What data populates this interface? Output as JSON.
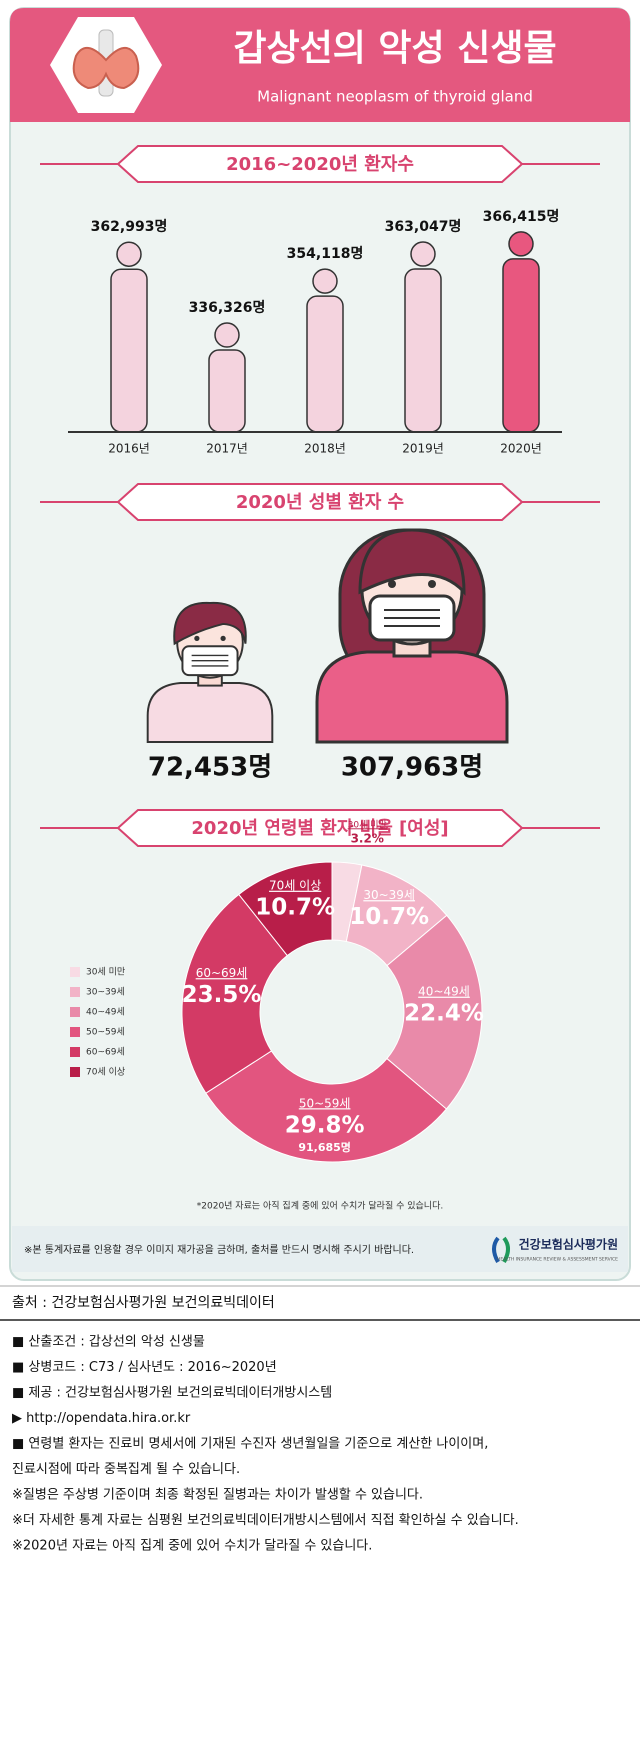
{
  "header": {
    "title": "갑상선의 악성 신생물",
    "subtitle": "Malignant neoplasm of thyroid gland"
  },
  "chart_data": [
    {
      "type": "bar",
      "title": "2016~2020년 환자수",
      "categories": [
        "2016년",
        "2017년",
        "2018년",
        "2019년",
        "2020년"
      ],
      "values": [
        362993,
        336326,
        354118,
        363047,
        366415
      ],
      "value_labels": [
        "362,993명",
        "336,326명",
        "354,118명",
        "363,047명",
        "366,415명"
      ],
      "colors": [
        "#f4d3de",
        "#f4d3de",
        "#f4d3de",
        "#f4d3de",
        "#e8577f"
      ],
      "ylim": [
        300000,
        370000
      ]
    },
    {
      "type": "pictogram",
      "title": "2020년 성별 환자 수",
      "categories": [
        null,
        null
      ],
      "values": [
        72453,
        307963
      ],
      "value_labels": [
        "72,453명",
        "307,963명"
      ],
      "colors": [
        "#f7dbe3",
        "#ea5f88"
      ]
    },
    {
      "type": "donut",
      "title": "2020년 연령별 환자 비율 [여성]",
      "categories": [
        "30세 미만",
        "30~39세",
        "40~49세",
        "50~59세",
        "60~69세",
        "70세 이상"
      ],
      "values": [
        3.2,
        10.7,
        22.4,
        29.8,
        23.5,
        10.7
      ],
      "value_labels": [
        "3.2%",
        "10.7%",
        "22.4%",
        "29.8%",
        "23.5%",
        "10.7%"
      ],
      "colors": [
        "#f8dbe4",
        "#f2b3c7",
        "#e98aa9",
        "#e2557f",
        "#d33a65",
        "#b81e49"
      ],
      "annotations": [
        {
          "index": 3,
          "text": "91,685명"
        }
      ],
      "legend": "left",
      "note": "*2020년 자료는 아직 집계 중에 있어 수치가 달라질 수 있습니다."
    }
  ],
  "banner": {
    "text": "※본 통계자료를 인용할 경우 이미지 재가공을 금하며, 출처를 반드시 명시해 주시기 바랍니다.",
    "logo": "건강보험심사평가원",
    "logo_sub": "HEALTH INSURANCE REVIEW & ASSESSMENT SERVICE"
  },
  "source": "출처 : 건강보험심사평가원 보건의료빅데이터",
  "items": [
    "■ 산출조건 : 갑상선의 악성 신생물",
    "■ 상병코드 : C73 / 심사년도 : 2016~2020년",
    "■ 제공 : 건강보험심사평가원 보건의료빅데이터개방시스템",
    "▶ http://opendata.hira.or.kr",
    "■ 연령별 환자는 진료비 명세서에 기재된 수진자 생년월일을 기준으로 계산한 나이이며,",
    "   진료시점에 따라 중복집계 될 수 있습니다.",
    "※질병은 주상병 기준이며 최종 확정된 질병과는 차이가 발생할 수 있습니다.",
    "※더 자세한 통계 자료는 심평원 보건의료빅데이터개방시스템에서 직접 확인하실 수 있습니다.",
    "※2020년 자료는 아직 집계 중에 있어 수치가 달라질 수 있습니다."
  ]
}
